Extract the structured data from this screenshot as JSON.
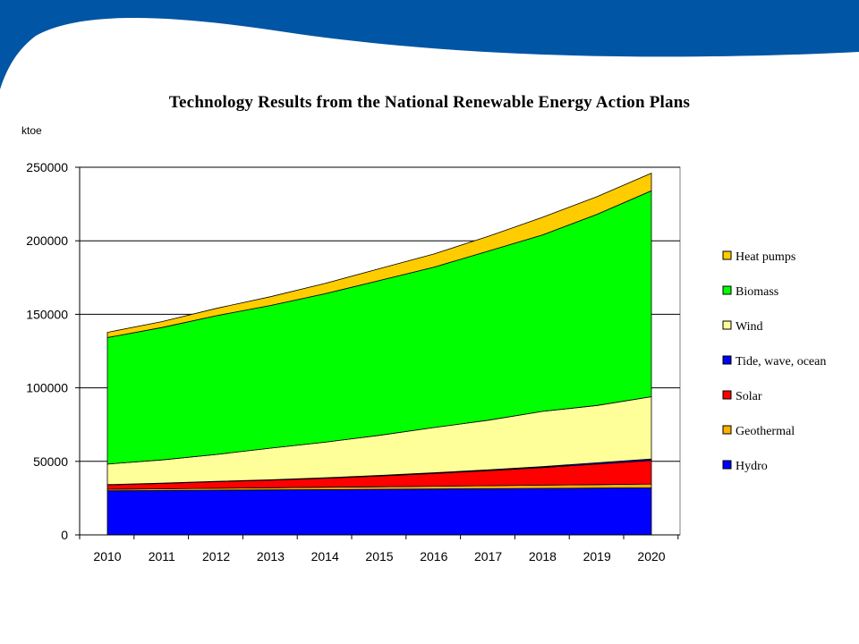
{
  "colors": {
    "banner": "#0055a4",
    "heat_pumps": "#ffcc00",
    "biomass": "#00ff00",
    "wind": "#ffff99",
    "tide_wave_ocean": "#0000ff",
    "solar": "#ff0000",
    "geothermal": "#ffb000",
    "hydro": "#0000ff"
  },
  "chart_data": {
    "type": "area",
    "stacked": true,
    "title": "Technology Results from the National Renewable Energy Action Plans",
    "ylabel": "ktoe",
    "xlabel": "",
    "ylim": [
      0,
      250000
    ],
    "yticks": [
      "0",
      "50000",
      "100000",
      "150000",
      "200000",
      "250000"
    ],
    "categories": [
      "2010",
      "2011",
      "2012",
      "2013",
      "2014",
      "2015",
      "2016",
      "2017",
      "2018",
      "2019",
      "2020"
    ],
    "grid": true,
    "legend_position": "right",
    "series": [
      {
        "name": "Hydro",
        "color": "#0000ff",
        "values": [
          30000,
          30200,
          30400,
          30600,
          30800,
          31000,
          31200,
          31400,
          31600,
          31800,
          32000
        ]
      },
      {
        "name": "Geothermal",
        "color": "#ffb000",
        "values": [
          1000,
          1150,
          1300,
          1450,
          1600,
          1750,
          1900,
          2050,
          2200,
          2400,
          2600
        ]
      },
      {
        "name": "Solar",
        "color": "#ff0000",
        "values": [
          3000,
          3650,
          4500,
          5200,
          6100,
          7300,
          8700,
          10200,
          12000,
          14000,
          16000
        ]
      },
      {
        "name": "Tide, wave, ocean",
        "color": "#0000ff",
        "values": [
          200,
          200,
          200,
          250,
          300,
          400,
          500,
          600,
          700,
          800,
          1000
        ]
      },
      {
        "name": "Wind",
        "color": "#ffff99",
        "values": [
          14000,
          15800,
          18300,
          21500,
          24200,
          27250,
          30700,
          33750,
          37500,
          39000,
          42400
        ]
      },
      {
        "name": "Biomass",
        "color": "#00ff00",
        "values": [
          86000,
          90000,
          94300,
          97000,
          101000,
          105300,
          109000,
          115000,
          120000,
          130000,
          140000
        ]
      },
      {
        "name": "Heat pumps",
        "color": "#ffcc00",
        "values": [
          3500,
          4000,
          5000,
          6000,
          7000,
          8000,
          9000,
          10000,
          12000,
          12000,
          12000
        ]
      }
    ]
  }
}
